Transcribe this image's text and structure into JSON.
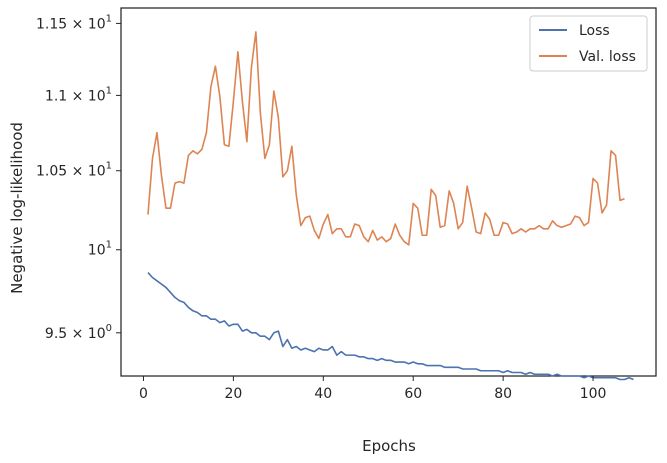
{
  "chart_data": {
    "type": "line",
    "title": "",
    "xlabel": "Epochs",
    "ylabel": "Negative log-likelihood",
    "yscale": "log",
    "xlim": [
      -5,
      114
    ],
    "ylim": [
      9.25,
      11.61
    ],
    "grid": false,
    "legend_position": "top-right",
    "x_ticks": [
      {
        "value": 0,
        "label": "0"
      },
      {
        "value": 20,
        "label": "20"
      },
      {
        "value": 40,
        "label": "40"
      },
      {
        "value": 60,
        "label": "60"
      },
      {
        "value": 80,
        "label": "80"
      },
      {
        "value": 100,
        "label": "100"
      }
    ],
    "y_ticks": [
      {
        "value": 9.5,
        "mant": "9.5",
        "sep": " × ",
        "base": "10",
        "exp": "0"
      },
      {
        "value": 10.0,
        "mant": "",
        "sep": "",
        "base": "10",
        "exp": "1"
      },
      {
        "value": 10.5,
        "mant": "1.05",
        "sep": " × ",
        "base": "10",
        "exp": "1"
      },
      {
        "value": 11.0,
        "mant": "1.1",
        "sep": " × ",
        "base": "10",
        "exp": "1"
      },
      {
        "value": 11.5,
        "mant": "1.15",
        "sep": " × ",
        "base": "10",
        "exp": "1"
      }
    ],
    "series": [
      {
        "name": "Loss",
        "color": "#4c72b0",
        "x_start": 1,
        "values": [
          9.86,
          9.83,
          9.81,
          9.79,
          9.77,
          9.74,
          9.71,
          9.69,
          9.68,
          9.65,
          9.63,
          9.62,
          9.6,
          9.6,
          9.58,
          9.58,
          9.56,
          9.57,
          9.54,
          9.55,
          9.55,
          9.51,
          9.52,
          9.5,
          9.5,
          9.48,
          9.48,
          9.46,
          9.5,
          9.51,
          9.42,
          9.46,
          9.41,
          9.42,
          9.4,
          9.41,
          9.4,
          9.39,
          9.41,
          9.4,
          9.4,
          9.42,
          9.37,
          9.39,
          9.37,
          9.37,
          9.37,
          9.36,
          9.36,
          9.35,
          9.35,
          9.34,
          9.35,
          9.34,
          9.34,
          9.33,
          9.33,
          9.33,
          9.32,
          9.33,
          9.32,
          9.32,
          9.31,
          9.31,
          9.31,
          9.31,
          9.3,
          9.3,
          9.3,
          9.3,
          9.29,
          9.29,
          9.29,
          9.29,
          9.28,
          9.28,
          9.28,
          9.28,
          9.28,
          9.27,
          9.28,
          9.27,
          9.27,
          9.27,
          9.26,
          9.27,
          9.26,
          9.26,
          9.26,
          9.26,
          9.25,
          9.26,
          9.25,
          9.25,
          9.25,
          9.25,
          9.25,
          9.24,
          9.25,
          9.24,
          9.24,
          9.24,
          9.24,
          9.24,
          9.24,
          9.23,
          9.23,
          9.24,
          9.23
        ]
      },
      {
        "name": "Val. loss",
        "color": "#dd8452",
        "x_start": 1,
        "values": [
          10.22,
          10.58,
          10.75,
          10.47,
          10.26,
          10.26,
          10.42,
          10.43,
          10.42,
          10.6,
          10.63,
          10.61,
          10.64,
          10.75,
          11.06,
          11.2,
          10.99,
          10.67,
          10.66,
          10.96,
          11.3,
          10.96,
          10.69,
          11.19,
          11.44,
          10.88,
          10.58,
          10.67,
          11.03,
          10.85,
          10.46,
          10.5,
          10.66,
          10.34,
          10.15,
          10.2,
          10.21,
          10.12,
          10.07,
          10.16,
          10.22,
          10.1,
          10.13,
          10.13,
          10.08,
          10.08,
          10.16,
          10.15,
          10.08,
          10.05,
          10.12,
          10.06,
          10.08,
          10.05,
          10.07,
          10.16,
          10.09,
          10.05,
          10.03,
          10.29,
          10.26,
          10.09,
          10.09,
          10.38,
          10.34,
          10.14,
          10.15,
          10.37,
          10.29,
          10.13,
          10.17,
          10.4,
          10.26,
          10.11,
          10.1,
          10.23,
          10.19,
          10.09,
          10.09,
          10.17,
          10.16,
          10.1,
          10.11,
          10.13,
          10.11,
          10.13,
          10.13,
          10.15,
          10.13,
          10.13,
          10.18,
          10.15,
          10.14,
          10.15,
          10.16,
          10.21,
          10.2,
          10.15,
          10.17,
          10.45,
          10.42,
          10.23,
          10.28,
          10.63,
          10.6,
          10.31,
          10.32
        ]
      }
    ]
  }
}
